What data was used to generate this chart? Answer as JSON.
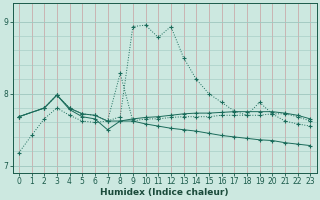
{
  "background_color": "#cce8e0",
  "grid_color_v": "#d4b8b8",
  "grid_color_h": "#b8d8d0",
  "line_color": "#1a6b5a",
  "xlabel": "Humidex (Indice chaleur)",
  "xlim": [
    -0.5,
    23.5
  ],
  "ylim": [
    6.9,
    9.25
  ],
  "yticks": [
    7,
    8,
    9
  ],
  "xticks": [
    0,
    1,
    2,
    3,
    4,
    5,
    6,
    7,
    8,
    9,
    10,
    11,
    12,
    13,
    14,
    15,
    16,
    17,
    18,
    19,
    20,
    21,
    22,
    23
  ],
  "series": [
    {
      "x": [
        0,
        1,
        2,
        3,
        4,
        5,
        6,
        7,
        8,
        9,
        10,
        11,
        12,
        13,
        14,
        15,
        16,
        17,
        18,
        19,
        20,
        21,
        22,
        23
      ],
      "y": [
        7.18,
        7.42,
        7.65,
        7.8,
        7.7,
        7.62,
        7.6,
        7.62,
        7.68,
        8.93,
        8.95,
        8.78,
        8.93,
        8.5,
        8.2,
        8.0,
        7.88,
        7.76,
        7.7,
        7.88,
        7.72,
        7.62,
        7.58,
        7.55
      ],
      "style": "dotted"
    },
    {
      "x": [
        0,
        2,
        3,
        4,
        5,
        6,
        7,
        8,
        9,
        10,
        11,
        12,
        13,
        14,
        15,
        16,
        17,
        18,
        19,
        20,
        21,
        22,
        23
      ],
      "y": [
        7.68,
        7.8,
        7.98,
        7.8,
        7.72,
        7.7,
        7.62,
        8.28,
        7.62,
        7.65,
        7.65,
        7.67,
        7.68,
        7.68,
        7.68,
        7.7,
        7.7,
        7.7,
        7.7,
        7.72,
        7.72,
        7.68,
        7.62
      ],
      "style": "dotted"
    },
    {
      "x": [
        0,
        2,
        3,
        4,
        5,
        6,
        7,
        8,
        9,
        10,
        11,
        12,
        13,
        14,
        15,
        16,
        17,
        18,
        19,
        20,
        21,
        22,
        23
      ],
      "y": [
        7.68,
        7.8,
        7.98,
        7.8,
        7.72,
        7.7,
        7.62,
        7.62,
        7.65,
        7.67,
        7.68,
        7.7,
        7.72,
        7.73,
        7.73,
        7.74,
        7.75,
        7.75,
        7.75,
        7.75,
        7.73,
        7.7,
        7.65
      ],
      "style": "solid"
    },
    {
      "x": [
        0,
        2,
        3,
        4,
        5,
        6,
        7,
        8,
        9,
        10,
        11,
        12,
        13,
        14,
        15,
        16,
        17,
        18,
        19,
        20,
        21,
        22,
        23
      ],
      "y": [
        7.68,
        7.8,
        7.98,
        7.78,
        7.68,
        7.65,
        7.5,
        7.62,
        7.62,
        7.58,
        7.55,
        7.52,
        7.5,
        7.48,
        7.45,
        7.42,
        7.4,
        7.38,
        7.36,
        7.35,
        7.32,
        7.3,
        7.28
      ],
      "style": "solid"
    }
  ]
}
